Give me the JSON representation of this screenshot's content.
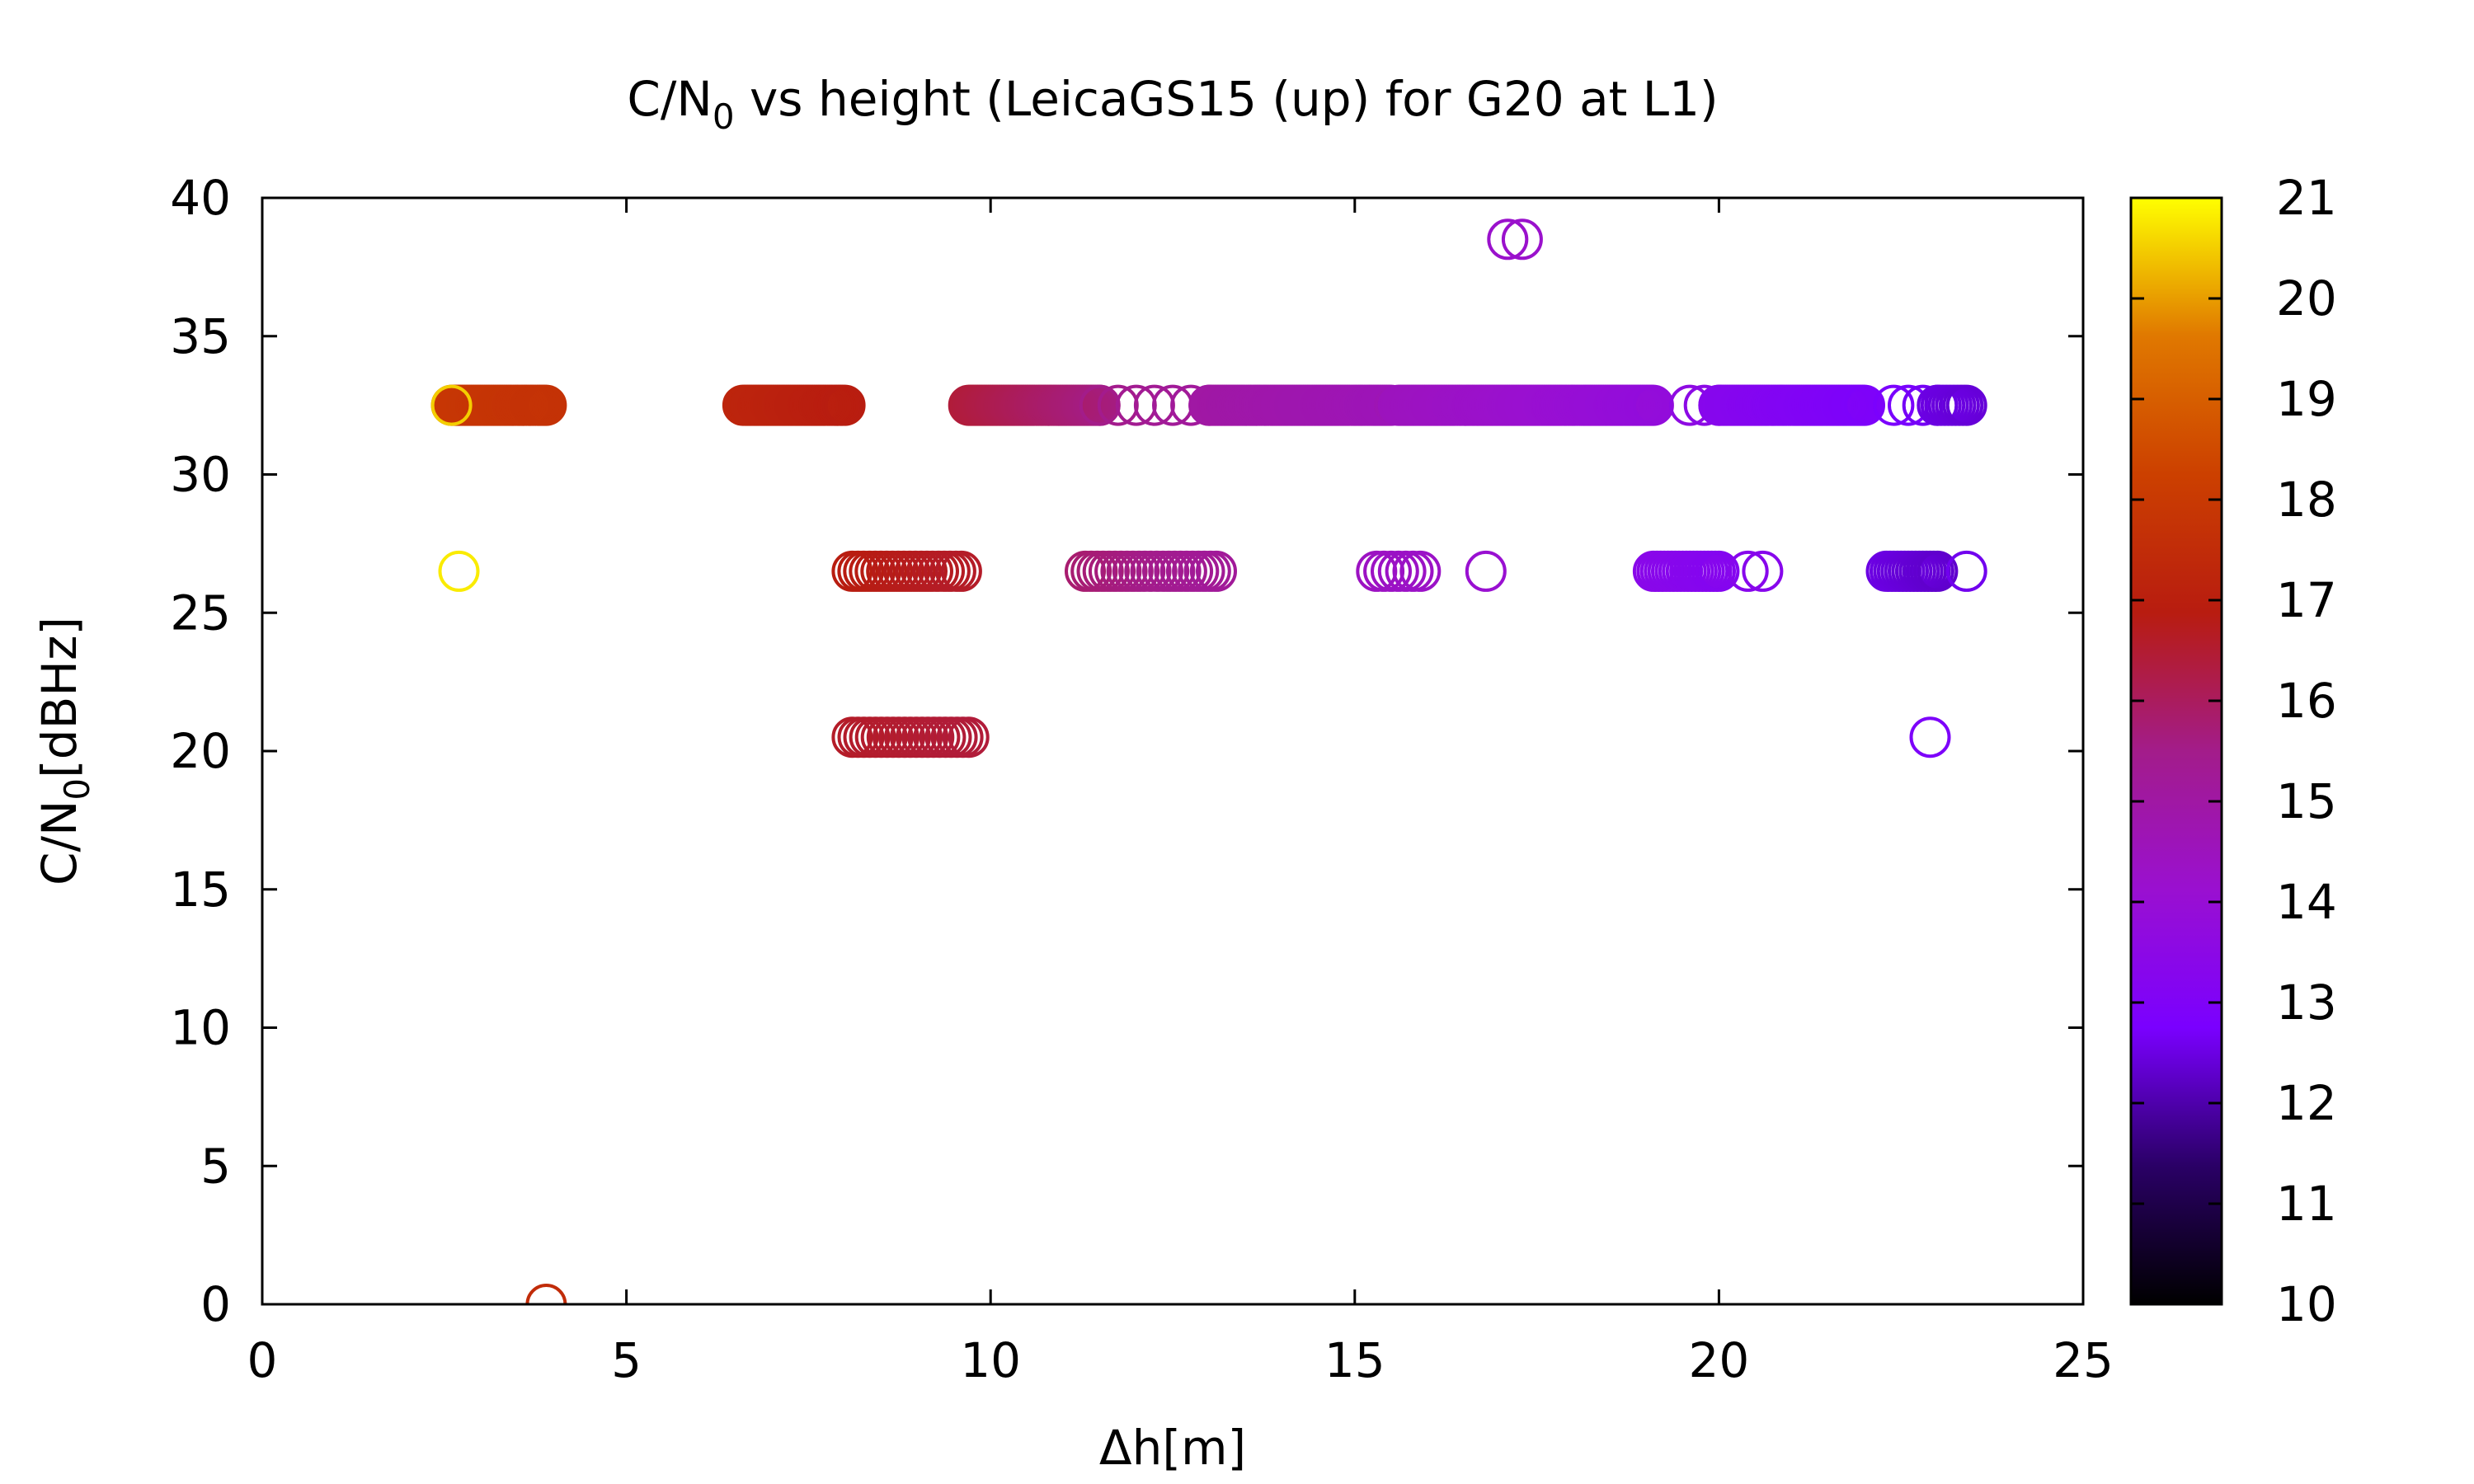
{
  "chart_data": {
    "type": "scatter",
    "title": {
      "main": "C/N",
      "sub": "0",
      "rest": " vs height (LeicaGS15 (up) for G20 at L1)"
    },
    "xlabel": "Δh[m]",
    "ylabel": {
      "main": "C/N",
      "sub": "0",
      "rest": "[dBHz]"
    },
    "xlim": [
      0,
      25
    ],
    "ylim": [
      0,
      40
    ],
    "xticks": [
      0,
      5,
      10,
      15,
      20,
      25
    ],
    "xtick_labels": [
      "0",
      "5",
      "10",
      "15",
      "20",
      "25"
    ],
    "yticks": [
      0,
      5,
      10,
      15,
      20,
      25,
      30,
      35,
      40
    ],
    "ytick_labels": [
      "0",
      "5",
      "10",
      "15",
      "20",
      "25",
      "30",
      "35",
      "40"
    ],
    "colorbar": {
      "range": [
        10,
        21
      ],
      "ticks": [
        10,
        11,
        12,
        13,
        14,
        15,
        16,
        17,
        18,
        19,
        20,
        21
      ],
      "tick_labels": [
        "10",
        "11",
        "12",
        "13",
        "14",
        "15",
        "16",
        "17",
        "18",
        "19",
        "20",
        "21"
      ],
      "palette": [
        "#000000",
        "#2a0066",
        "#7a00ff",
        "#9a10d0",
        "#a31c8a",
        "#b81c10",
        "#cc4000",
        "#e07800",
        "#ffff00"
      ]
    },
    "marker": "open-circle",
    "segments": [
      {
        "y": 32.5,
        "x_start": 2.6,
        "x_end": 3.9,
        "c_start": 17.9,
        "c_end": 17.7,
        "step": 0.03
      },
      {
        "y": 32.5,
        "x_start": 6.6,
        "x_end": 8.0,
        "c_start": 17.2,
        "c_end": 16.9,
        "step": 0.03
      },
      {
        "y": 32.5,
        "x_start": 9.7,
        "x_end": 11.5,
        "c_start": 16.4,
        "c_end": 15.6,
        "step": 0.03
      },
      {
        "y": 32.5,
        "x_start": 11.5,
        "x_end": 13.0,
        "c_start": 15.5,
        "c_end": 15.1,
        "step": 0.25
      },
      {
        "y": 32.5,
        "x_start": 13.0,
        "x_end": 15.5,
        "c_start": 15.0,
        "c_end": 14.6,
        "step": 0.03
      },
      {
        "y": 32.5,
        "x_start": 15.6,
        "x_end": 19.1,
        "c_start": 14.5,
        "c_end": 13.8,
        "step": 0.03
      },
      {
        "y": 32.5,
        "x_start": 19.6,
        "x_end": 20.0,
        "c_start": 13.6,
        "c_end": 13.4,
        "step": 0.2
      },
      {
        "y": 32.5,
        "x_start": 20.0,
        "x_end": 22.0,
        "c_start": 13.3,
        "c_end": 12.9,
        "step": 0.03
      },
      {
        "y": 32.5,
        "x_start": 22.4,
        "x_end": 23.0,
        "c_start": 12.8,
        "c_end": 12.6,
        "step": 0.2
      },
      {
        "y": 32.5,
        "x_start": 23.0,
        "x_end": 23.4,
        "c_start": 12.5,
        "c_end": 12.4,
        "step": 0.05
      },
      {
        "y": 26.5,
        "x_start": 8.1,
        "x_end": 9.6,
        "c_start": 16.9,
        "c_end": 16.6,
        "step": 0.08
      },
      {
        "y": 26.5,
        "x_start": 11.3,
        "x_end": 13.1,
        "c_start": 15.8,
        "c_end": 15.2,
        "step": 0.08
      },
      {
        "y": 26.5,
        "x_start": 15.3,
        "x_end": 15.9,
        "c_start": 14.4,
        "c_end": 14.3,
        "step": 0.1
      },
      {
        "y": 26.5,
        "x_start": 19.1,
        "x_end": 20.0,
        "c_start": 13.4,
        "c_end": 13.2,
        "step": 0.05
      },
      {
        "y": 26.5,
        "x_start": 22.3,
        "x_end": 23.0,
        "c_start": 12.5,
        "c_end": 12.3,
        "step": 0.05
      },
      {
        "y": 20.5,
        "x_start": 8.1,
        "x_end": 9.7,
        "c_start": 16.6,
        "c_end": 16.4,
        "step": 0.08
      }
    ],
    "points": [
      {
        "x": 2.7,
        "y": 26.5,
        "c": 20.8
      },
      {
        "x": 2.6,
        "y": 32.5,
        "c": 20.5
      },
      {
        "x": 3.9,
        "y": 0.0,
        "c": 17.5
      },
      {
        "x": 17.1,
        "y": 38.5,
        "c": 14.2
      },
      {
        "x": 17.3,
        "y": 38.5,
        "c": 14.2
      },
      {
        "x": 16.8,
        "y": 26.5,
        "c": 14.1
      },
      {
        "x": 20.4,
        "y": 26.5,
        "c": 13.3
      },
      {
        "x": 20.6,
        "y": 26.5,
        "c": 13.3
      },
      {
        "x": 23.4,
        "y": 26.5,
        "c": 12.6
      },
      {
        "x": 22.9,
        "y": 20.5,
        "c": 12.9
      }
    ]
  }
}
